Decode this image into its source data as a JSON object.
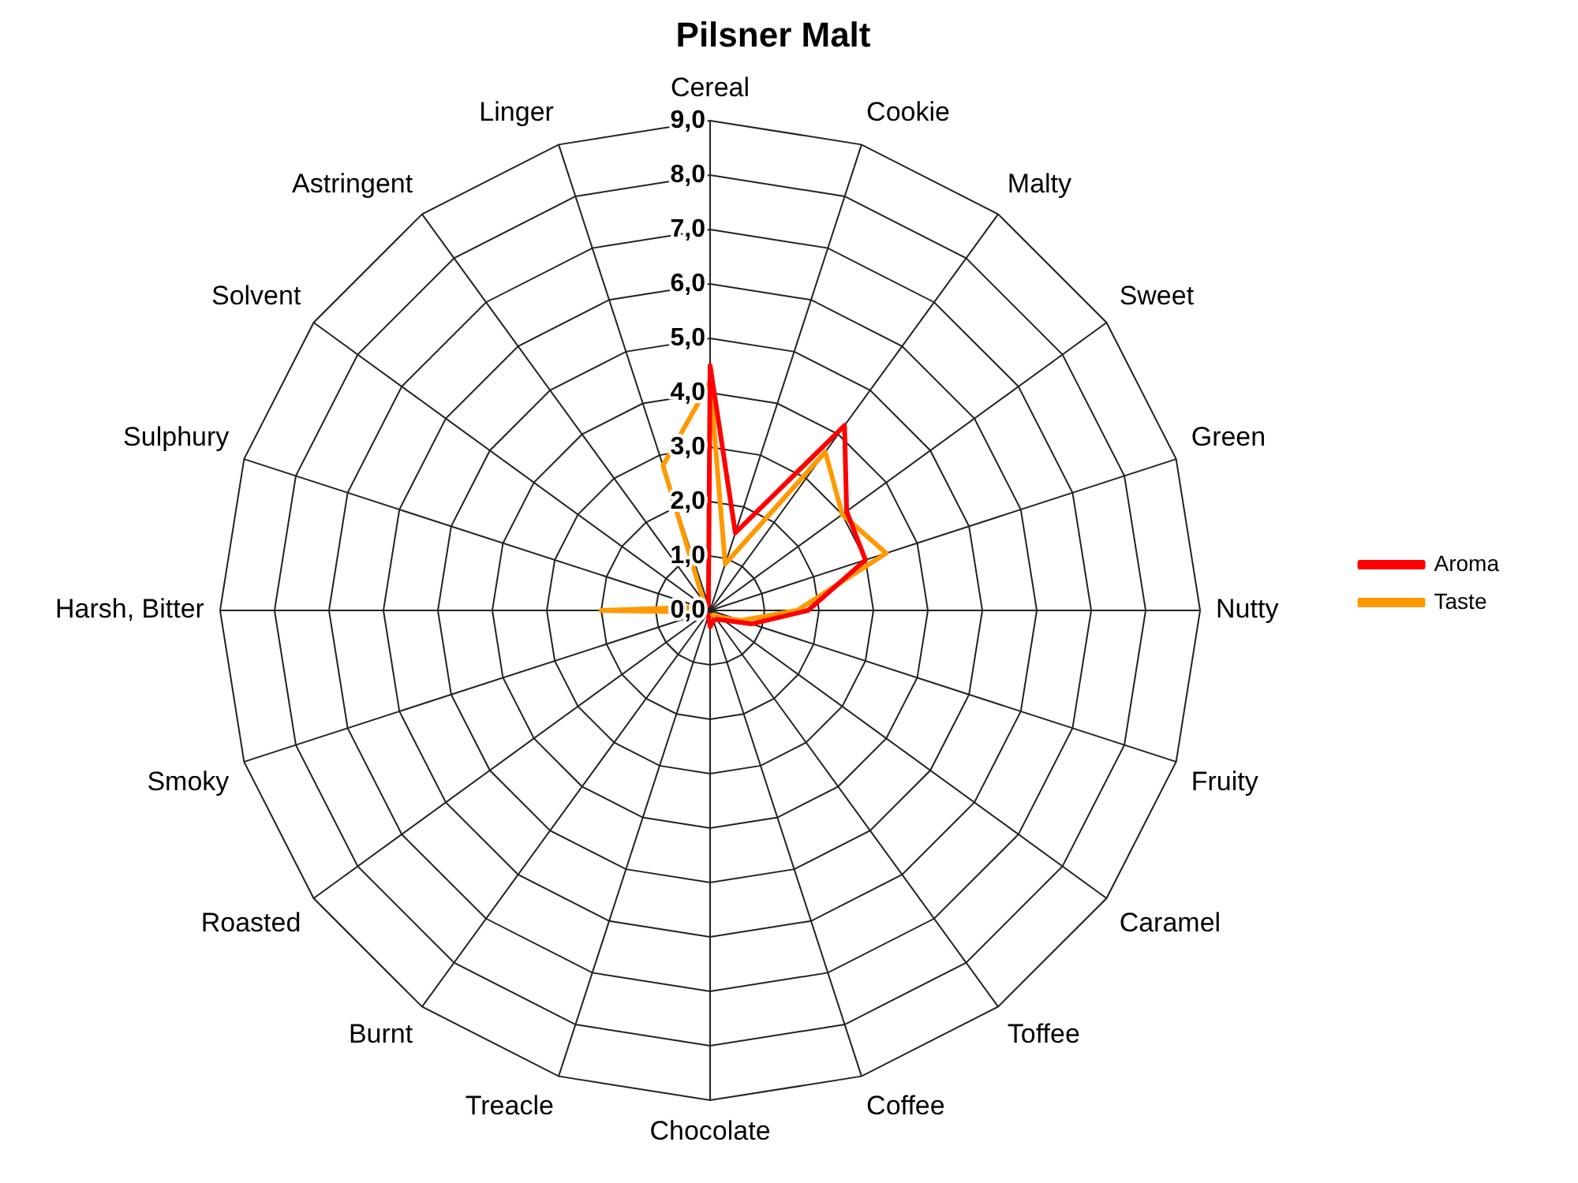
{
  "chart_data": {
    "type": "radar",
    "title": "Pilsner Malt",
    "categories": [
      "Cereal",
      "Cookie",
      "Malty",
      "Sweet",
      "Green",
      "Nutty",
      "Fruity",
      "Caramel",
      "Toffee",
      "Coffee",
      "Chocolate",
      "Treacle",
      "Burnt",
      "Roasted",
      "Smoky",
      "Harsh, Bitter",
      "Sulphury",
      "Solvent",
      "Astringent",
      "Linger"
    ],
    "series": [
      {
        "name": "Aroma",
        "color": "#ff0000",
        "values": [
          4.5,
          1.5,
          4.2,
          3.1,
          3.0,
          1.8,
          0.8,
          0.3,
          0.2,
          0.2,
          0.3,
          0.1,
          0.1,
          0.1,
          0.1,
          0.2,
          0.2,
          0.1,
          0.1,
          0.1
        ]
      },
      {
        "name": "Taste",
        "color": "#ff9900",
        "values": [
          4.2,
          0.9,
          3.6,
          3.0,
          3.4,
          1.6,
          0.6,
          0.2,
          0.1,
          0.1,
          0.1,
          0.1,
          0.1,
          0.1,
          0.1,
          2.0,
          0.2,
          0.1,
          0.2,
          2.8
        ]
      }
    ],
    "ylim": [
      0,
      9
    ],
    "yticks": [
      {
        "value": 0,
        "label": "0,0"
      },
      {
        "value": 1,
        "label": "1,0"
      },
      {
        "value": 2,
        "label": "2,0"
      },
      {
        "value": 3,
        "label": "3,0"
      },
      {
        "value": 4,
        "label": "4,0"
      },
      {
        "value": 5,
        "label": "5,0"
      },
      {
        "value": 6,
        "label": "6,0"
      },
      {
        "value": 7,
        "label": "7,0"
      },
      {
        "value": 8,
        "label": "8,0"
      },
      {
        "value": 9,
        "label": "9,0"
      }
    ],
    "grid": true,
    "legend": "right",
    "marker": "none",
    "line_style": "solid"
  }
}
